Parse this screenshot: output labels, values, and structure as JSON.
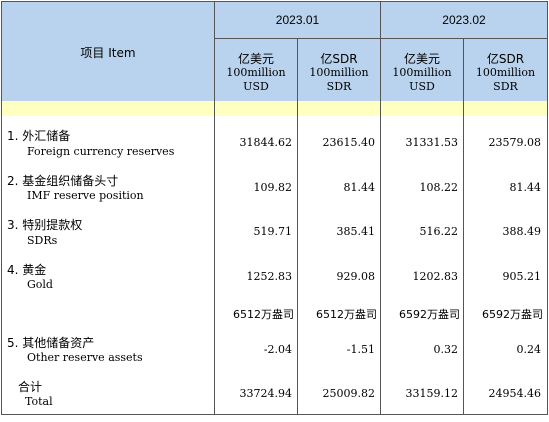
{
  "header": {
    "item_label": "项目  Item",
    "periods": [
      "2023.01",
      "2023.02"
    ],
    "columns": [
      {
        "zh": "亿美元",
        "en1": "100million",
        "en2": "USD"
      },
      {
        "zh": "亿SDR",
        "en1": "100million",
        "en2": "SDR"
      },
      {
        "zh": "亿美元",
        "en1": "100million",
        "en2": "USD"
      },
      {
        "zh": "亿SDR",
        "en1": "100million",
        "en2": "SDR"
      }
    ]
  },
  "rows": [
    {
      "zh": "1. 外汇储备",
      "en": "Foreign currency reserves",
      "values": [
        "31844.62",
        "23615.40",
        "31331.53",
        "23579.08"
      ]
    },
    {
      "zh": "2. 基金组织储备头寸",
      "en": "IMF reserve position",
      "values": [
        "109.82",
        "81.44",
        "108.22",
        "81.44"
      ]
    },
    {
      "zh": "3. 特别提款权",
      "en": "SDRs",
      "values": [
        "519.71",
        "385.41",
        "516.22",
        "388.49"
      ]
    },
    {
      "zh": "4. 黄金",
      "en": "Gold",
      "values": [
        "1252.83",
        "929.08",
        "1202.83",
        "905.21"
      ]
    },
    {
      "zh": "",
      "en": "",
      "values": [
        "6512万盎司",
        "6512万盎司",
        "6592万盎司",
        "6592万盎司"
      ]
    },
    {
      "zh": "5. 其他储备资产",
      "en": "Other reserve assets",
      "values": [
        "-2.04",
        "-1.51",
        "0.32",
        "0.24"
      ]
    },
    {
      "zh": "合计",
      "en": "Total",
      "values": [
        "33724.94",
        "25009.82",
        "33159.12",
        "24954.46"
      ]
    }
  ]
}
